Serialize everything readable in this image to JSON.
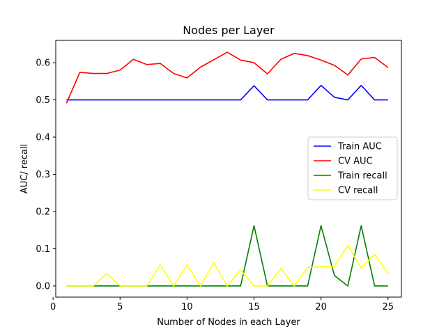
{
  "chart_data": {
    "type": "line",
    "title": "Nodes per Layer",
    "xlabel": "Number of Nodes in each Layer",
    "ylabel": "AUC/ recall",
    "xlim": [
      0.2,
      26.0
    ],
    "ylim": [
      -0.03,
      0.66
    ],
    "xticks": [
      0,
      5,
      10,
      15,
      20,
      25
    ],
    "yticks": [
      0.0,
      0.1,
      0.2,
      0.3,
      0.4,
      0.5,
      0.6
    ],
    "ytick_labels": [
      "0.0",
      "0.1",
      "0.2",
      "0.3",
      "0.4",
      "0.5",
      "0.6"
    ],
    "grid": false,
    "legend_position": "center-right",
    "x": [
      1,
      2,
      3,
      4,
      5,
      6,
      7,
      8,
      9,
      10,
      11,
      12,
      13,
      14,
      15,
      16,
      17,
      18,
      19,
      20,
      21,
      22,
      23,
      24,
      25
    ],
    "series": [
      {
        "name": "Train AUC",
        "color": "#0000ff",
        "values": [
          0.5,
          0.5,
          0.5,
          0.5,
          0.5,
          0.5,
          0.5,
          0.5,
          0.5,
          0.5,
          0.5,
          0.5,
          0.5,
          0.5,
          0.538,
          0.5,
          0.5,
          0.5,
          0.5,
          0.539,
          0.507,
          0.5,
          0.539,
          0.5,
          0.5
        ]
      },
      {
        "name": "CV AUC",
        "color": "#ff0000",
        "values": [
          0.491,
          0.574,
          0.571,
          0.571,
          0.58,
          0.609,
          0.595,
          0.598,
          0.571,
          0.559,
          0.588,
          0.608,
          0.628,
          0.607,
          0.6,
          0.57,
          0.609,
          0.625,
          0.619,
          0.607,
          0.593,
          0.567,
          0.61,
          0.614,
          0.587
        ]
      },
      {
        "name": "Train recall",
        "color": "#008000",
        "values": [
          0,
          0,
          0,
          0,
          0,
          0,
          0,
          0,
          0,
          0,
          0,
          0,
          0,
          0,
          0.162,
          0,
          0,
          0,
          0,
          0.162,
          0.028,
          0,
          0.162,
          0,
          0
        ]
      },
      {
        "name": "CV recall",
        "color": "#ffff00",
        "values": [
          0,
          0,
          0,
          0.033,
          0,
          0,
          0,
          0.057,
          0,
          0.057,
          0,
          0.062,
          0,
          0.043,
          0,
          0,
          0.047,
          0,
          0.049,
          0.052,
          0.053,
          0.109,
          0.048,
          0.085,
          0.033
        ]
      }
    ]
  }
}
